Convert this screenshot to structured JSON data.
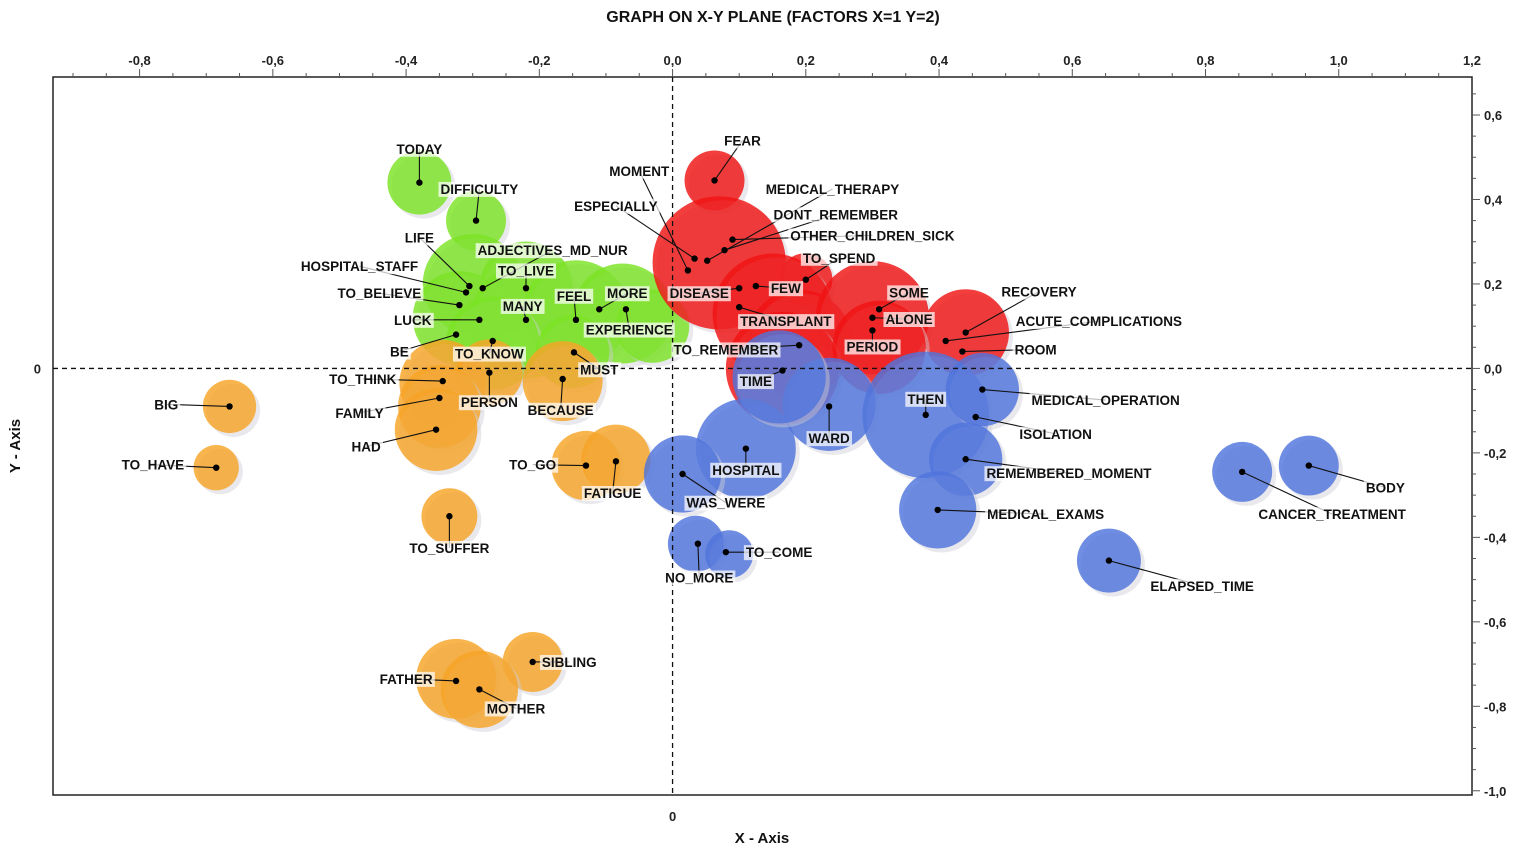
{
  "chart_data": {
    "type": "scatter",
    "title": "GRAPH ON X-Y PLANE (FACTORS X=1 Y=2)",
    "xlabel": "X - Axis",
    "ylabel": "Y - Axis",
    "xlim": [
      -0.93,
      1.2
    ],
    "ylim": [
      -1.01,
      0.69
    ],
    "x_ticks_top": [
      {
        "value": -0.8,
        "label": "-0,8"
      },
      {
        "value": -0.6,
        "label": "-0,6"
      },
      {
        "value": -0.4,
        "label": "-0,4"
      },
      {
        "value": -0.2,
        "label": "-0,2"
      },
      {
        "value": 0.0,
        "label": "0,0"
      },
      {
        "value": 0.2,
        "label": "0,2"
      },
      {
        "value": 0.4,
        "label": "0,4"
      },
      {
        "value": 0.6,
        "label": "0,6"
      },
      {
        "value": 0.8,
        "label": "0,8"
      },
      {
        "value": 1.0,
        "label": "1,0"
      },
      {
        "value": 1.2,
        "label": "1,2"
      }
    ],
    "y_ticks_right": [
      {
        "value": 0.6,
        "label": "0,6"
      },
      {
        "value": 0.4,
        "label": "0,4"
      },
      {
        "value": 0.2,
        "label": "0,2"
      },
      {
        "value": 0.0,
        "label": "0,0"
      },
      {
        "value": -0.2,
        "label": "-0,2"
      },
      {
        "value": -0.4,
        "label": "-0,4"
      },
      {
        "value": -0.6,
        "label": "-0,6"
      },
      {
        "value": -0.8,
        "label": "-0,8"
      },
      {
        "value": -1.0,
        "label": "-1,0"
      }
    ],
    "origin_labels": {
      "x_zero": "0",
      "y_zero": "0"
    },
    "grid": false,
    "colors": {
      "green": "#7be324",
      "red": "#f01414",
      "blue": "#4f74dc",
      "orange": "#f7a426"
    },
    "points": [
      {
        "label": "TODAY",
        "x": -0.38,
        "y": 0.44,
        "cluster": "green",
        "lx": -0.38,
        "ly": 0.52
      },
      {
        "label": "DIFFICULTY",
        "x": -0.295,
        "y": 0.35,
        "cluster": "green",
        "lx": -0.29,
        "ly": 0.425
      },
      {
        "label": "LIFE",
        "x": -0.305,
        "y": 0.195,
        "cluster": "green",
        "lx": -0.38,
        "ly": 0.31
      },
      {
        "label": "ADJECTIVES_MD_NUR",
        "x": -0.285,
        "y": 0.19,
        "cluster": "green",
        "lx": -0.18,
        "ly": 0.28
      },
      {
        "label": "HOSPITAL_STAFF",
        "x": -0.31,
        "y": 0.18,
        "cluster": "green",
        "lx": -0.47,
        "ly": 0.242
      },
      {
        "label": "TO_LIVE",
        "x": -0.22,
        "y": 0.19,
        "cluster": "green",
        "lx": -0.22,
        "ly": 0.232
      },
      {
        "label": "TO_BELIEVE",
        "x": -0.32,
        "y": 0.15,
        "cluster": "green",
        "lx": -0.44,
        "ly": 0.178
      },
      {
        "label": "MANY",
        "x": -0.22,
        "y": 0.115,
        "cluster": "green",
        "lx": -0.225,
        "ly": 0.148
      },
      {
        "label": "FEEL",
        "x": -0.145,
        "y": 0.115,
        "cluster": "green",
        "lx": -0.148,
        "ly": 0.172
      },
      {
        "label": "MORE",
        "x": -0.11,
        "y": 0.14,
        "cluster": "green",
        "lx": -0.068,
        "ly": 0.178
      },
      {
        "label": "LUCK",
        "x": -0.29,
        "y": 0.115,
        "cluster": "green",
        "lx": -0.39,
        "ly": 0.115
      },
      {
        "label": "EXPERIENCE",
        "x": -0.07,
        "y": 0.14,
        "cluster": "green",
        "lx": -0.065,
        "ly": 0.092
      },
      {
        "label": "BE",
        "x": -0.325,
        "y": 0.08,
        "cluster": "green",
        "lx": -0.41,
        "ly": 0.04
      },
      {
        "label": "TO_KNOW",
        "x": -0.27,
        "y": 0.065,
        "cluster": "green",
        "lx": -0.275,
        "ly": 0.035
      },
      {
        "label": "MUST",
        "x": -0.148,
        "y": 0.038,
        "cluster": "green",
        "lx": -0.11,
        "ly": -0.002
      },
      {
        "label": "FEAR",
        "x": 0.063,
        "y": 0.445,
        "cluster": "red",
        "lx": 0.105,
        "ly": 0.54
      },
      {
        "label": "MOMENT",
        "x": 0.023,
        "y": 0.232,
        "cluster": "red",
        "lx": -0.05,
        "ly": 0.468
      },
      {
        "label": "MEDICAL_THERAPY",
        "x": 0.052,
        "y": 0.255,
        "cluster": "red",
        "lx": 0.24,
        "ly": 0.425
      },
      {
        "label": "ESPECIALLY",
        "x": 0.033,
        "y": 0.26,
        "cluster": "red",
        "lx": -0.085,
        "ly": 0.385
      },
      {
        "label": "DONT_REMEMBER",
        "x": 0.078,
        "y": 0.28,
        "cluster": "red",
        "lx": 0.245,
        "ly": 0.365
      },
      {
        "label": "OTHER_CHILDREN_SICK",
        "x": 0.09,
        "y": 0.305,
        "cluster": "red",
        "lx": 0.3,
        "ly": 0.315
      },
      {
        "label": "TO_SPEND",
        "x": 0.2,
        "y": 0.21,
        "cluster": "red",
        "lx": 0.25,
        "ly": 0.262
      },
      {
        "label": "DISEASE",
        "x": 0.1,
        "y": 0.19,
        "cluster": "red",
        "lx": 0.04,
        "ly": 0.178
      },
      {
        "label": "FEW",
        "x": 0.125,
        "y": 0.195,
        "cluster": "red",
        "lx": 0.17,
        "ly": 0.19
      },
      {
        "label": "SOME",
        "x": 0.31,
        "y": 0.14,
        "cluster": "red",
        "lx": 0.355,
        "ly": 0.18
      },
      {
        "label": "TRANSPLANT",
        "x": 0.1,
        "y": 0.145,
        "cluster": "red",
        "lx": 0.17,
        "ly": 0.112
      },
      {
        "label": "ALONE",
        "x": 0.3,
        "y": 0.12,
        "cluster": "red",
        "lx": 0.355,
        "ly": 0.117
      },
      {
        "label": "RECOVERY",
        "x": 0.44,
        "y": 0.085,
        "cluster": "red",
        "lx": 0.55,
        "ly": 0.182
      },
      {
        "label": "ACUTE_COMPLICATIONS",
        "x": 0.41,
        "y": 0.065,
        "cluster": "red",
        "lx": 0.64,
        "ly": 0.112
      },
      {
        "label": "PERIOD",
        "x": 0.3,
        "y": 0.09,
        "cluster": "red",
        "lx": 0.3,
        "ly": 0.052
      },
      {
        "label": "TO_REMEMBER",
        "x": 0.19,
        "y": 0.055,
        "cluster": "red",
        "lx": 0.08,
        "ly": 0.045
      },
      {
        "label": "ROOM",
        "x": 0.435,
        "y": 0.04,
        "cluster": "red",
        "lx": 0.545,
        "ly": 0.045
      },
      {
        "label": "TIME",
        "x": 0.165,
        "y": -0.005,
        "cluster": "red",
        "lx": 0.125,
        "ly": -0.03
      },
      {
        "label": "MEDICAL_OPERATION",
        "x": 0.465,
        "y": -0.05,
        "cluster": "blue",
        "lx": 0.65,
        "ly": -0.075
      },
      {
        "label": "THEN",
        "x": 0.38,
        "y": -0.11,
        "cluster": "blue",
        "lx": 0.38,
        "ly": -0.072
      },
      {
        "label": "WARD",
        "x": 0.235,
        "y": -0.09,
        "cluster": "blue",
        "lx": 0.235,
        "ly": -0.165
      },
      {
        "label": "ISOLATION",
        "x": 0.455,
        "y": -0.115,
        "cluster": "blue",
        "lx": 0.575,
        "ly": -0.155
      },
      {
        "label": "HOSPITAL",
        "x": 0.11,
        "y": -0.19,
        "cluster": "blue",
        "lx": 0.11,
        "ly": -0.24
      },
      {
        "label": "REMEMBERED_MOMENT",
        "x": 0.44,
        "y": -0.215,
        "cluster": "blue",
        "lx": 0.595,
        "ly": -0.248
      },
      {
        "label": "WAS_WERE",
        "x": 0.015,
        "y": -0.25,
        "cluster": "blue",
        "lx": 0.08,
        "ly": -0.318
      },
      {
        "label": "MEDICAL_EXAMS",
        "x": 0.398,
        "y": -0.335,
        "cluster": "blue",
        "lx": 0.56,
        "ly": -0.345
      },
      {
        "label": "NO_MORE",
        "x": 0.038,
        "y": -0.415,
        "cluster": "blue",
        "lx": 0.04,
        "ly": -0.495
      },
      {
        "label": "TO_COME",
        "x": 0.08,
        "y": -0.435,
        "cluster": "blue",
        "lx": 0.16,
        "ly": -0.435
      },
      {
        "label": "ELAPSED_TIME",
        "x": 0.655,
        "y": -0.455,
        "cluster": "blue",
        "lx": 0.795,
        "ly": -0.515
      },
      {
        "label": "CANCER_TREATMENT",
        "x": 0.855,
        "y": -0.245,
        "cluster": "blue",
        "lx": 0.99,
        "ly": -0.345
      },
      {
        "label": "BODY",
        "x": 0.955,
        "y": -0.23,
        "cluster": "blue",
        "lx": 1.07,
        "ly": -0.282
      },
      {
        "label": "TO_THINK",
        "x": -0.345,
        "y": -0.03,
        "cluster": "orange",
        "lx": -0.465,
        "ly": -0.025
      },
      {
        "label": "PERSON",
        "x": -0.275,
        "y": -0.01,
        "cluster": "orange",
        "lx": -0.275,
        "ly": -0.08
      },
      {
        "label": "BECAUSE",
        "x": -0.165,
        "y": -0.025,
        "cluster": "orange",
        "lx": -0.168,
        "ly": -0.098
      },
      {
        "label": "FAMILY",
        "x": -0.35,
        "y": -0.07,
        "cluster": "orange",
        "lx": -0.47,
        "ly": -0.105
      },
      {
        "label": "BIG",
        "x": -0.665,
        "y": -0.09,
        "cluster": "orange",
        "lx": -0.76,
        "ly": -0.085
      },
      {
        "label": "HAD",
        "x": -0.355,
        "y": -0.145,
        "cluster": "orange",
        "lx": -0.46,
        "ly": -0.185
      },
      {
        "label": "TO_HAVE",
        "x": -0.685,
        "y": -0.235,
        "cluster": "orange",
        "lx": -0.78,
        "ly": -0.228
      },
      {
        "label": "TO_GO",
        "x": -0.13,
        "y": -0.23,
        "cluster": "orange",
        "lx": -0.21,
        "ly": -0.228
      },
      {
        "label": "FATIGUE",
        "x": -0.085,
        "y": -0.22,
        "cluster": "orange",
        "lx": -0.09,
        "ly": -0.295
      },
      {
        "label": "TO_SUFFER",
        "x": -0.335,
        "y": -0.35,
        "cluster": "orange",
        "lx": -0.335,
        "ly": -0.425
      },
      {
        "label": "SIBLING",
        "x": -0.21,
        "y": -0.695,
        "cluster": "orange",
        "lx": -0.155,
        "ly": -0.695
      },
      {
        "label": "FATHER",
        "x": -0.325,
        "y": -0.74,
        "cluster": "orange",
        "lx": -0.4,
        "ly": -0.735
      },
      {
        "label": "MOTHER",
        "x": -0.29,
        "y": -0.76,
        "cluster": "orange",
        "lx": -0.235,
        "ly": -0.805
      }
    ],
    "bubbles": [
      {
        "x": -0.38,
        "y": 0.44,
        "r": 0.048,
        "cluster": "green"
      },
      {
        "x": -0.295,
        "y": 0.35,
        "r": 0.045,
        "cluster": "green"
      },
      {
        "x": -0.3,
        "y": 0.2,
        "r": 0.075,
        "cluster": "green"
      },
      {
        "x": -0.22,
        "y": 0.19,
        "r": 0.07,
        "cluster": "green"
      },
      {
        "x": -0.32,
        "y": 0.12,
        "r": 0.07,
        "cluster": "green"
      },
      {
        "x": -0.22,
        "y": 0.11,
        "r": 0.085,
        "cluster": "green"
      },
      {
        "x": -0.145,
        "y": 0.13,
        "r": 0.08,
        "cluster": "green"
      },
      {
        "x": -0.075,
        "y": 0.13,
        "r": 0.075,
        "cluster": "green"
      },
      {
        "x": -0.03,
        "y": 0.1,
        "r": 0.055,
        "cluster": "green"
      },
      {
        "x": -0.27,
        "y": 0.06,
        "r": 0.07,
        "cluster": "green"
      },
      {
        "x": -0.15,
        "y": 0.04,
        "r": 0.055,
        "cluster": "green"
      },
      {
        "x": -0.345,
        "y": -0.035,
        "r": 0.065,
        "cluster": "orange"
      },
      {
        "x": -0.275,
        "y": -0.01,
        "r": 0.05,
        "cluster": "orange"
      },
      {
        "x": -0.165,
        "y": -0.03,
        "r": 0.06,
        "cluster": "orange"
      },
      {
        "x": -0.35,
        "y": -0.09,
        "r": 0.062,
        "cluster": "orange"
      },
      {
        "x": -0.355,
        "y": -0.145,
        "r": 0.062,
        "cluster": "orange"
      },
      {
        "x": -0.665,
        "y": -0.09,
        "r": 0.04,
        "cluster": "orange"
      },
      {
        "x": -0.685,
        "y": -0.235,
        "r": 0.034,
        "cluster": "orange"
      },
      {
        "x": -0.13,
        "y": -0.23,
        "r": 0.052,
        "cluster": "orange"
      },
      {
        "x": -0.085,
        "y": -0.215,
        "r": 0.052,
        "cluster": "orange"
      },
      {
        "x": -0.335,
        "y": -0.35,
        "r": 0.042,
        "cluster": "orange"
      },
      {
        "x": -0.21,
        "y": -0.695,
        "r": 0.045,
        "cluster": "orange"
      },
      {
        "x": -0.325,
        "y": -0.735,
        "r": 0.06,
        "cluster": "orange"
      },
      {
        "x": -0.29,
        "y": -0.76,
        "r": 0.058,
        "cluster": "orange"
      },
      {
        "x": 0.063,
        "y": 0.445,
        "r": 0.045,
        "cluster": "red"
      },
      {
        "x": 0.07,
        "y": 0.25,
        "r": 0.1,
        "cluster": "red"
      },
      {
        "x": 0.2,
        "y": 0.21,
        "r": 0.04,
        "cluster": "red"
      },
      {
        "x": 0.15,
        "y": 0.13,
        "r": 0.09,
        "cluster": "red"
      },
      {
        "x": 0.19,
        "y": 0.06,
        "r": 0.08,
        "cluster": "red"
      },
      {
        "x": 0.3,
        "y": 0.12,
        "r": 0.085,
        "cluster": "red"
      },
      {
        "x": 0.44,
        "y": 0.085,
        "r": 0.065,
        "cluster": "red"
      },
      {
        "x": 0.165,
        "y": 0.0,
        "r": 0.085,
        "cluster": "red"
      },
      {
        "x": 0.31,
        "y": 0.05,
        "r": 0.07,
        "cluster": "red"
      },
      {
        "x": 0.11,
        "y": -0.19,
        "r": 0.075,
        "cluster": "blue"
      },
      {
        "x": 0.015,
        "y": -0.25,
        "r": 0.058,
        "cluster": "blue"
      },
      {
        "x": 0.235,
        "y": -0.085,
        "r": 0.07,
        "cluster": "blue"
      },
      {
        "x": 0.38,
        "y": -0.11,
        "r": 0.095,
        "cluster": "blue"
      },
      {
        "x": 0.465,
        "y": -0.05,
        "r": 0.055,
        "cluster": "blue"
      },
      {
        "x": 0.44,
        "y": -0.215,
        "r": 0.055,
        "cluster": "blue"
      },
      {
        "x": 0.398,
        "y": -0.335,
        "r": 0.058,
        "cluster": "blue"
      },
      {
        "x": 0.035,
        "y": -0.415,
        "r": 0.042,
        "cluster": "blue"
      },
      {
        "x": 0.085,
        "y": -0.44,
        "r": 0.036,
        "cluster": "blue"
      },
      {
        "x": 0.655,
        "y": -0.455,
        "r": 0.048,
        "cluster": "blue"
      },
      {
        "x": 0.855,
        "y": -0.245,
        "r": 0.045,
        "cluster": "blue"
      },
      {
        "x": 0.955,
        "y": -0.23,
        "r": 0.045,
        "cluster": "blue"
      },
      {
        "x": 0.16,
        "y": -0.02,
        "r": 0.07,
        "cluster": "blue"
      }
    ]
  }
}
